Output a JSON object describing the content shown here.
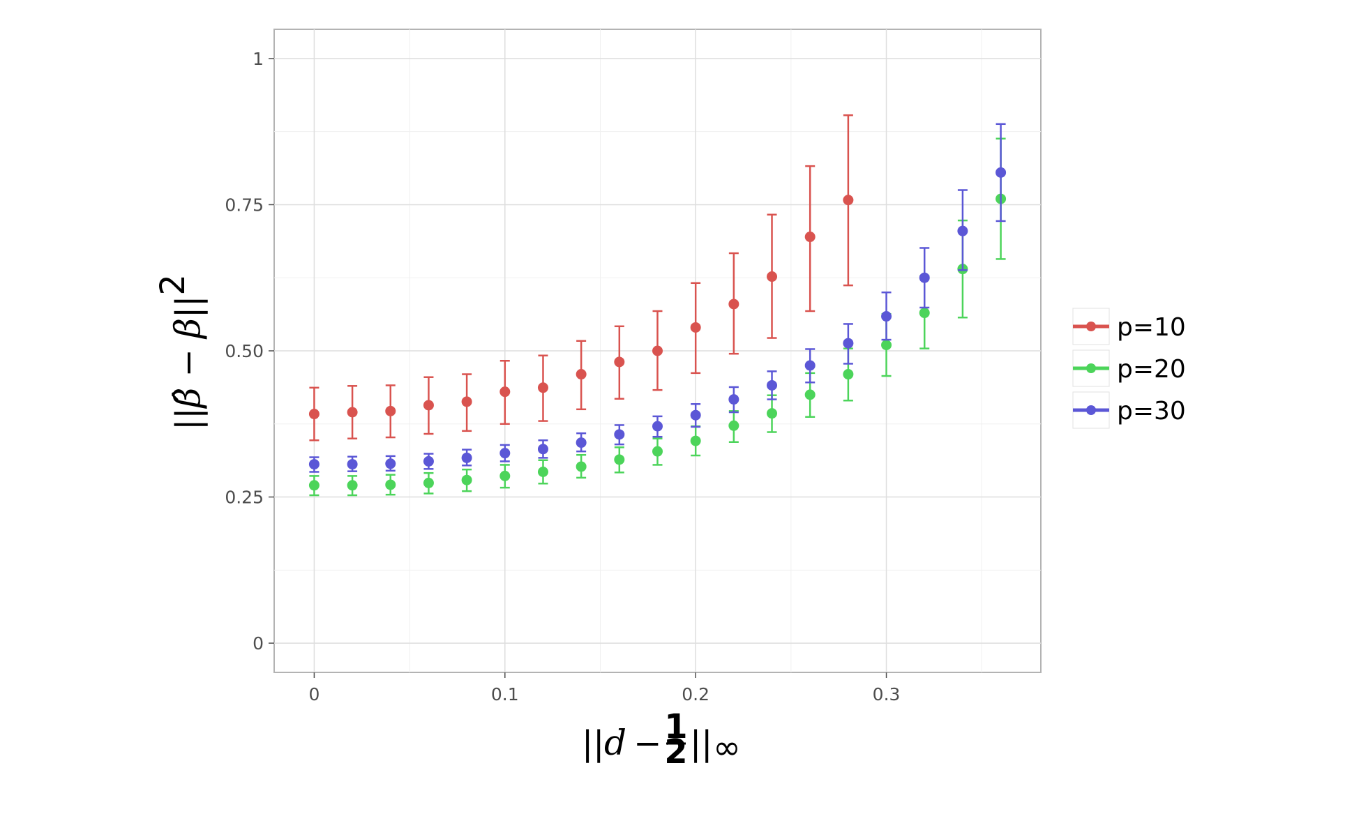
{
  "chart_data": {
    "type": "scatter",
    "error_bars": true,
    "xlabel": {
      "pre": "||",
      "var": "d",
      "minus": " − ",
      "frac_num": "1",
      "frac_den": "2",
      "post": "||",
      "sub": "∞"
    },
    "ylabel": {
      "pre": "||",
      "var1": "β̂",
      "minus": " − ",
      "var2": "β",
      "post": "||",
      "sup": "2"
    },
    "xlim": [
      -0.021,
      0.381
    ],
    "ylim": [
      -0.05,
      1.05
    ],
    "xticks": [
      0,
      0.1,
      0.2,
      0.3
    ],
    "xtick_labels": [
      "0",
      "0.1",
      "0.2",
      "0.3"
    ],
    "xminor": [
      0.05,
      0.15,
      0.25,
      0.35
    ],
    "yticks": [
      0,
      0.25,
      0.5,
      0.75,
      1
    ],
    "ytick_labels": [
      "0",
      "0.25",
      "0.50",
      "0.75",
      "1"
    ],
    "yminor": [
      0.125,
      0.375,
      0.625,
      0.875
    ],
    "grid": true,
    "legend_position": "right",
    "x": [
      0,
      0.02,
      0.04,
      0.06,
      0.08,
      0.1,
      0.12,
      0.14,
      0.16,
      0.18,
      0.2,
      0.22,
      0.24,
      0.26,
      0.28,
      0.3,
      0.32,
      0.34,
      0.36
    ],
    "series": [
      {
        "name": "p=10",
        "color": "#d9534f",
        "points": [
          {
            "x": 0.0,
            "y": 0.392,
            "lo": 0.347,
            "hi": 0.437
          },
          {
            "x": 0.02,
            "y": 0.395,
            "lo": 0.35,
            "hi": 0.44
          },
          {
            "x": 0.04,
            "y": 0.397,
            "lo": 0.352,
            "hi": 0.441
          },
          {
            "x": 0.06,
            "y": 0.407,
            "lo": 0.358,
            "hi": 0.455
          },
          {
            "x": 0.08,
            "y": 0.413,
            "lo": 0.363,
            "hi": 0.46
          },
          {
            "x": 0.1,
            "y": 0.43,
            "lo": 0.375,
            "hi": 0.483
          },
          {
            "x": 0.12,
            "y": 0.437,
            "lo": 0.38,
            "hi": 0.492
          },
          {
            "x": 0.14,
            "y": 0.46,
            "lo": 0.4,
            "hi": 0.517
          },
          {
            "x": 0.16,
            "y": 0.481,
            "lo": 0.418,
            "hi": 0.542
          },
          {
            "x": 0.18,
            "y": 0.5,
            "lo": 0.433,
            "hi": 0.568
          },
          {
            "x": 0.2,
            "y": 0.54,
            "lo": 0.462,
            "hi": 0.616
          },
          {
            "x": 0.22,
            "y": 0.58,
            "lo": 0.495,
            "hi": 0.667
          },
          {
            "x": 0.24,
            "y": 0.627,
            "lo": 0.522,
            "hi": 0.733
          },
          {
            "x": 0.26,
            "y": 0.695,
            "lo": 0.568,
            "hi": 0.816
          },
          {
            "x": 0.28,
            "y": 0.758,
            "lo": 0.612,
            "hi": 0.903
          }
        ]
      },
      {
        "name": "p=20",
        "color": "#4cd45a",
        "points": [
          {
            "x": 0.0,
            "y": 0.27,
            "lo": 0.253,
            "hi": 0.286
          },
          {
            "x": 0.02,
            "y": 0.27,
            "lo": 0.253,
            "hi": 0.286
          },
          {
            "x": 0.04,
            "y": 0.271,
            "lo": 0.254,
            "hi": 0.288
          },
          {
            "x": 0.06,
            "y": 0.274,
            "lo": 0.256,
            "hi": 0.291
          },
          {
            "x": 0.08,
            "y": 0.279,
            "lo": 0.26,
            "hi": 0.297
          },
          {
            "x": 0.1,
            "y": 0.286,
            "lo": 0.266,
            "hi": 0.305
          },
          {
            "x": 0.12,
            "y": 0.293,
            "lo": 0.273,
            "hi": 0.313
          },
          {
            "x": 0.14,
            "y": 0.302,
            "lo": 0.283,
            "hi": 0.322
          },
          {
            "x": 0.16,
            "y": 0.314,
            "lo": 0.292,
            "hi": 0.335
          },
          {
            "x": 0.18,
            "y": 0.328,
            "lo": 0.305,
            "hi": 0.35
          },
          {
            "x": 0.2,
            "y": 0.346,
            "lo": 0.321,
            "hi": 0.371
          },
          {
            "x": 0.22,
            "y": 0.372,
            "lo": 0.344,
            "hi": 0.397
          },
          {
            "x": 0.24,
            "y": 0.393,
            "lo": 0.361,
            "hi": 0.424
          },
          {
            "x": 0.26,
            "y": 0.425,
            "lo": 0.387,
            "hi": 0.462
          },
          {
            "x": 0.28,
            "y": 0.46,
            "lo": 0.415,
            "hi": 0.504
          },
          {
            "x": 0.3,
            "y": 0.51,
            "lo": 0.457,
            "hi": 0.563
          },
          {
            "x": 0.32,
            "y": 0.565,
            "lo": 0.504,
            "hi": 0.628
          },
          {
            "x": 0.34,
            "y": 0.64,
            "lo": 0.557,
            "hi": 0.723
          },
          {
            "x": 0.36,
            "y": 0.76,
            "lo": 0.657,
            "hi": 0.863
          }
        ]
      },
      {
        "name": "p=30",
        "color": "#5b57d6",
        "points": [
          {
            "x": 0.0,
            "y": 0.306,
            "lo": 0.293,
            "hi": 0.318
          },
          {
            "x": 0.02,
            "y": 0.306,
            "lo": 0.294,
            "hi": 0.319
          },
          {
            "x": 0.04,
            "y": 0.307,
            "lo": 0.295,
            "hi": 0.32
          },
          {
            "x": 0.06,
            "y": 0.311,
            "lo": 0.298,
            "hi": 0.324
          },
          {
            "x": 0.08,
            "y": 0.317,
            "lo": 0.304,
            "hi": 0.331
          },
          {
            "x": 0.1,
            "y": 0.325,
            "lo": 0.311,
            "hi": 0.339
          },
          {
            "x": 0.12,
            "y": 0.332,
            "lo": 0.317,
            "hi": 0.347
          },
          {
            "x": 0.14,
            "y": 0.343,
            "lo": 0.328,
            "hi": 0.359
          },
          {
            "x": 0.16,
            "y": 0.357,
            "lo": 0.34,
            "hi": 0.373
          },
          {
            "x": 0.18,
            "y": 0.371,
            "lo": 0.353,
            "hi": 0.388
          },
          {
            "x": 0.2,
            "y": 0.39,
            "lo": 0.37,
            "hi": 0.409
          },
          {
            "x": 0.22,
            "y": 0.417,
            "lo": 0.395,
            "hi": 0.438
          },
          {
            "x": 0.24,
            "y": 0.441,
            "lo": 0.417,
            "hi": 0.465
          },
          {
            "x": 0.26,
            "y": 0.475,
            "lo": 0.446,
            "hi": 0.503
          },
          {
            "x": 0.28,
            "y": 0.513,
            "lo": 0.478,
            "hi": 0.546
          },
          {
            "x": 0.3,
            "y": 0.559,
            "lo": 0.519,
            "hi": 0.6
          },
          {
            "x": 0.32,
            "y": 0.625,
            "lo": 0.574,
            "hi": 0.676
          },
          {
            "x": 0.34,
            "y": 0.705,
            "lo": 0.638,
            "hi": 0.775
          },
          {
            "x": 0.36,
            "y": 0.805,
            "lo": 0.722,
            "hi": 0.888
          }
        ]
      }
    ]
  }
}
